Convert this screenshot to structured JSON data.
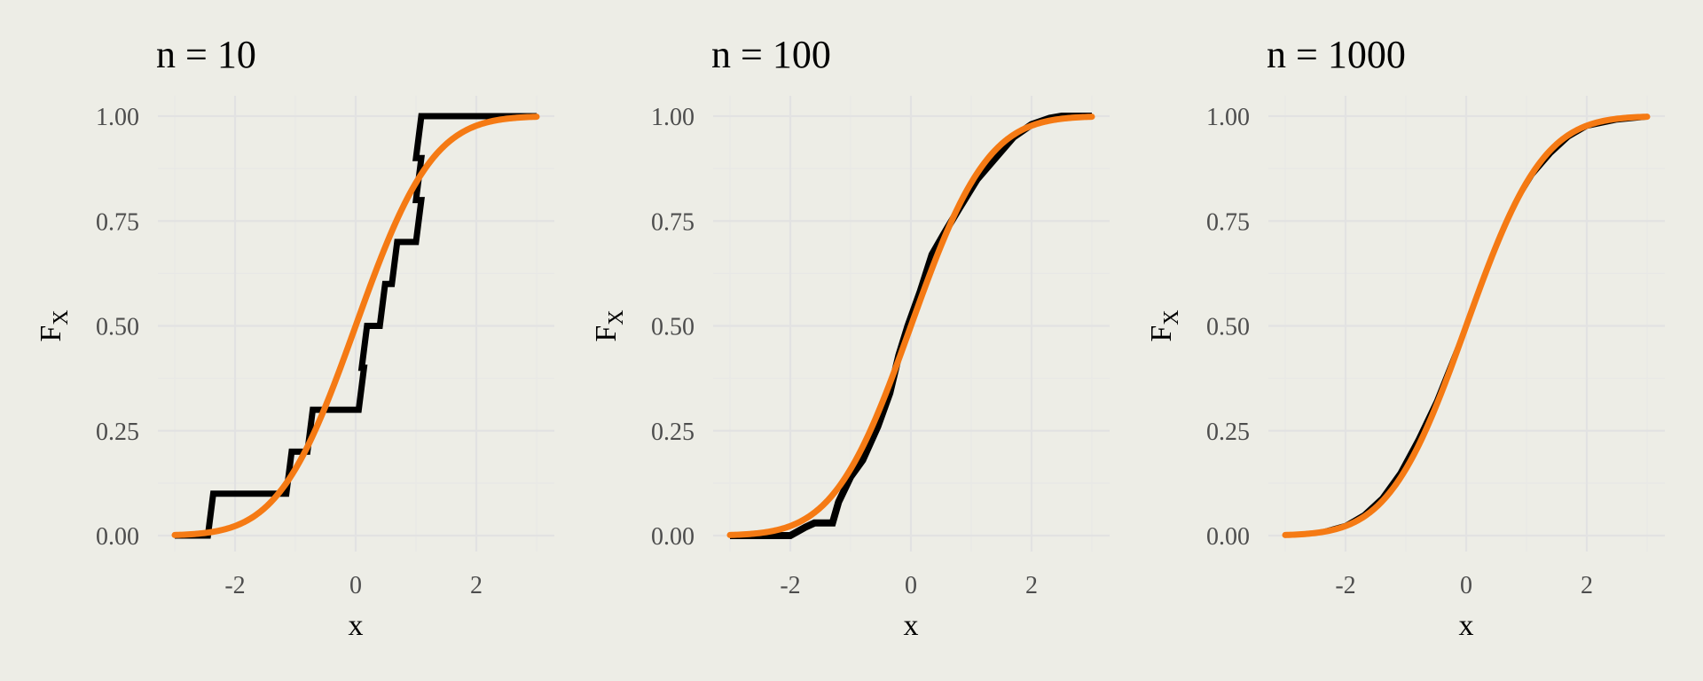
{
  "chart_data": [
    {
      "type": "line",
      "title": "n = 10",
      "xlabel": "x",
      "ylabel_main": "F",
      "ylabel_sub": "X",
      "xlim": [
        -3,
        3
      ],
      "ylim": [
        0,
        1
      ],
      "xticks": [
        -2,
        0,
        2
      ],
      "xtick_labels": [
        "-2",
        "0",
        "2"
      ],
      "yticks": [
        0,
        0.25,
        0.5,
        0.75,
        1
      ],
      "ytick_labels": [
        "0.00",
        "0.25",
        "0.50",
        "0.75",
        "1.00"
      ],
      "grid": true,
      "legend": "none",
      "series": [
        {
          "kind": "ecdf",
          "color": "#000000",
          "steps": [
            -2.45,
            -1.15,
            -0.8,
            0.05,
            0.1,
            0.4,
            0.6,
            1.0,
            1.0,
            1.0
          ]
        },
        {
          "kind": "normal-cdf",
          "color": "#f57a14",
          "mean": 0,
          "sd": 1
        }
      ]
    },
    {
      "type": "line",
      "title": "n = 100",
      "xlabel": "x",
      "ylabel_main": "F",
      "ylabel_sub": "X",
      "xlim": [
        -3,
        3
      ],
      "ylim": [
        0,
        1
      ],
      "xticks": [
        -2,
        0,
        2
      ],
      "xtick_labels": [
        "-2",
        "0",
        "2"
      ],
      "yticks": [
        0,
        0.25,
        0.5,
        0.75,
        1
      ],
      "ytick_labels": [
        "0.00",
        "0.25",
        "0.50",
        "0.75",
        "1.00"
      ],
      "grid": true,
      "legend": "none",
      "series": [
        {
          "kind": "ecdf-curve",
          "color": "#000000",
          "points": [
            [
              -3,
              0
            ],
            [
              -2.0,
              0.0
            ],
            [
              -1.75,
              0.02
            ],
            [
              -1.6,
              0.03
            ],
            [
              -1.3,
              0.03
            ],
            [
              -1.2,
              0.08
            ],
            [
              -1.0,
              0.14
            ],
            [
              -0.8,
              0.18
            ],
            [
              -0.55,
              0.26
            ],
            [
              -0.35,
              0.34
            ],
            [
              -0.2,
              0.43
            ],
            [
              -0.05,
              0.5
            ],
            [
              0.15,
              0.58
            ],
            [
              0.35,
              0.67
            ],
            [
              0.55,
              0.72
            ],
            [
              0.8,
              0.78
            ],
            [
              1.1,
              0.85
            ],
            [
              1.4,
              0.9
            ],
            [
              1.7,
              0.95
            ],
            [
              2.0,
              0.98
            ],
            [
              2.3,
              0.995
            ],
            [
              2.5,
              1.0
            ],
            [
              3,
              1.0
            ]
          ]
        },
        {
          "kind": "normal-cdf",
          "color": "#f57a14",
          "mean": 0,
          "sd": 1
        }
      ]
    },
    {
      "type": "line",
      "title": "n = 1000",
      "xlabel": "x",
      "ylabel_main": "F",
      "ylabel_sub": "X",
      "xlim": [
        -3,
        3
      ],
      "ylim": [
        0,
        1
      ],
      "xticks": [
        -2,
        0,
        2
      ],
      "xtick_labels": [
        "-2",
        "0",
        "2"
      ],
      "yticks": [
        0,
        0.25,
        0.5,
        0.75,
        1
      ],
      "ytick_labels": [
        "0.00",
        "0.25",
        "0.50",
        "0.75",
        "1.00"
      ],
      "grid": true,
      "legend": "none",
      "series": [
        {
          "kind": "ecdf-curve",
          "color": "#000000",
          "points": [
            [
              -3,
              0
            ],
            [
              -2.5,
              0.005
            ],
            [
              -2.0,
              0.025
            ],
            [
              -1.7,
              0.05
            ],
            [
              -1.4,
              0.09
            ],
            [
              -1.1,
              0.15
            ],
            [
              -0.8,
              0.23
            ],
            [
              -0.5,
              0.32
            ],
            [
              -0.25,
              0.41
            ],
            [
              0.0,
              0.5
            ],
            [
              0.25,
              0.6
            ],
            [
              0.5,
              0.69
            ],
            [
              0.8,
              0.79
            ],
            [
              1.1,
              0.86
            ],
            [
              1.4,
              0.91
            ],
            [
              1.7,
              0.95
            ],
            [
              2.0,
              0.975
            ],
            [
              2.5,
              0.99
            ],
            [
              3,
              0.997
            ]
          ]
        },
        {
          "kind": "normal-cdf",
          "color": "#f57a14",
          "mean": 0,
          "sd": 1
        }
      ]
    }
  ]
}
